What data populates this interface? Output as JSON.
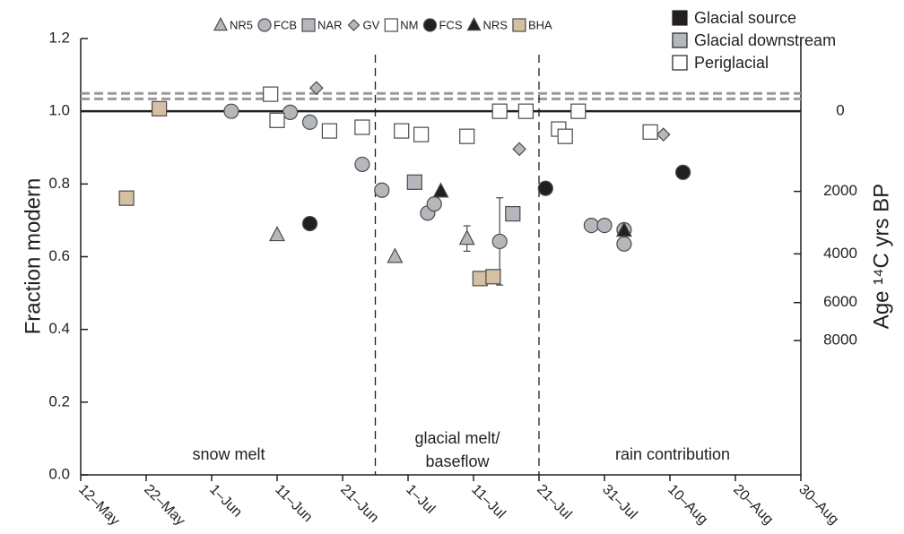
{
  "chart_data": {
    "type": "scatter",
    "y_label": "Fraction modern",
    "y2_label": "Age ¹⁴C yrs BP",
    "y2scale": "radiocarbon-age",
    "xlim": [
      "05-12",
      "08-30"
    ],
    "xticks": [
      {
        "value": "05-12",
        "label": "12–May"
      },
      {
        "value": "05-22",
        "label": "22–May"
      },
      {
        "value": "06-01",
        "label": "1–Jun"
      },
      {
        "value": "06-11",
        "label": "11–Jun"
      },
      {
        "value": "06-21",
        "label": "21–Jun"
      },
      {
        "value": "07-01",
        "label": "1–Jul"
      },
      {
        "value": "07-11",
        "label": "11–Jul"
      },
      {
        "value": "07-21",
        "label": "21–Jul"
      },
      {
        "value": "07-31",
        "label": "31–Jul"
      },
      {
        "value": "08-10",
        "label": "10–Aug"
      },
      {
        "value": "08-20",
        "label": "20–Aug"
      },
      {
        "value": "08-30",
        "label": "30–Aug"
      }
    ],
    "ylim": [
      0,
      1.2
    ],
    "yticks": [
      {
        "value": 0,
        "label": "0.0"
      },
      0.2,
      0.4,
      0.6,
      0.8,
      {
        "value": 1,
        "label": "1.0"
      },
      1.2
    ],
    "y2ticks": [
      0,
      2000,
      4000,
      6000,
      8000
    ],
    "hlines": [
      {
        "value": 1.0,
        "style": "solid",
        "color": "#231f20"
      },
      {
        "value": 1.034,
        "style": "dashed",
        "color": "#9a9a9a"
      },
      {
        "value": 1.049,
        "style": "dashed",
        "color": "#9a9a9a"
      }
    ],
    "vlines": [
      "06-26",
      "07-21"
    ],
    "annotations": [
      "snow melt",
      "glacial melt/",
      "baseflow",
      "rain contribution"
    ],
    "group_legend": [
      {
        "label": "Glacial source",
        "color": "#231f20"
      },
      {
        "label": "Glacial downstream",
        "color": "#b4b8bc"
      },
      {
        "label": "Periglacial",
        "color": "#ffffff"
      }
    ],
    "series": [
      {
        "name": "NR5",
        "marker": "triangle",
        "color": "#b4b8bc",
        "x": [
          "06-11",
          "06-29",
          "07-10"
        ],
        "values": [
          0.66,
          0.6,
          0.65
        ],
        "errors": [
          null,
          null,
          0.035
        ]
      },
      {
        "name": "FCB",
        "marker": "circle",
        "color": "#b4b8bc",
        "x": [
          "06-04",
          "06-13",
          "06-16",
          "06-24",
          "06-27",
          "07-04",
          "07-05",
          "07-15",
          "07-29",
          "07-31",
          "08-03",
          "08-03"
        ],
        "values": [
          1.0,
          0.997,
          0.97,
          0.854,
          0.783,
          0.72,
          0.745,
          0.642,
          0.686,
          0.686,
          0.635,
          0.674
        ],
        "errors": [
          null,
          null,
          null,
          null,
          null,
          null,
          null,
          0.12,
          null,
          null,
          null,
          null
        ]
      },
      {
        "name": "NAR",
        "marker": "square",
        "color": "#b4b8bc",
        "x": [
          "07-02",
          "07-17"
        ],
        "values": [
          0.805,
          0.718
        ]
      },
      {
        "name": "GV",
        "marker": "diamond",
        "color": "#b4b8bc",
        "x": [
          "06-17",
          "07-18",
          "08-09"
        ],
        "values": [
          1.064,
          0.896,
          0.936
        ]
      },
      {
        "name": "NM",
        "marker": "square",
        "color": "#ffffff",
        "x": [
          "06-10",
          "06-11",
          "06-19",
          "06-24",
          "06-30",
          "07-03",
          "07-10",
          "07-15",
          "07-19",
          "07-24",
          "07-25",
          "07-27",
          "08-07"
        ],
        "values": [
          1.047,
          0.975,
          0.946,
          0.956,
          0.946,
          0.936,
          0.931,
          1.0,
          1.0,
          0.951,
          0.931,
          1.0,
          0.943
        ]
      },
      {
        "name": "FCS",
        "marker": "circle",
        "color": "#231f20",
        "x": [
          "06-16",
          "07-22",
          "08-12"
        ],
        "values": [
          0.691,
          0.788,
          0.832
        ]
      },
      {
        "name": "NRS",
        "marker": "triangle",
        "color": "#231f20",
        "x": [
          "07-06",
          "08-03"
        ],
        "values": [
          0.78,
          0.672
        ]
      },
      {
        "name": "BHA",
        "marker": "square",
        "color": "#d5c0a4",
        "x": [
          "05-19",
          "05-24",
          "07-12",
          "07-14"
        ],
        "values": [
          0.761,
          1.007,
          0.54,
          0.545
        ]
      }
    ]
  }
}
